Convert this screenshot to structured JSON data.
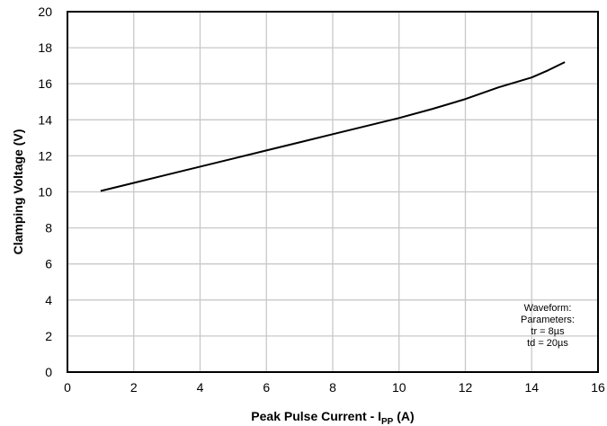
{
  "chart_data": {
    "type": "line",
    "title": "",
    "xlabel_main": "Peak Pulse Current - I",
    "xlabel_sub": "PP",
    "xlabel_suffix": " (A)",
    "ylabel": "Clamping Voltage (V)",
    "xlim": [
      0,
      16
    ],
    "ylim": [
      0,
      20
    ],
    "xticks": [
      0,
      2,
      4,
      6,
      8,
      10,
      12,
      14,
      16
    ],
    "yticks": [
      0,
      2,
      4,
      6,
      8,
      10,
      12,
      14,
      16,
      18,
      20
    ],
    "grid": true,
    "series": [
      {
        "x": [
          1,
          2,
          3,
          4,
          5,
          6,
          7,
          8,
          9,
          10,
          11,
          12,
          13,
          14,
          14.5,
          15
        ],
        "y": [
          10.05,
          10.5,
          10.95,
          11.4,
          11.85,
          12.3,
          12.75,
          13.2,
          13.65,
          14.1,
          14.6,
          15.15,
          15.8,
          16.35,
          16.75,
          17.2
        ]
      }
    ],
    "annotation": [
      "Waveform:",
      "Parameters:",
      "tr = 8µs",
      "td = 20µs"
    ]
  }
}
